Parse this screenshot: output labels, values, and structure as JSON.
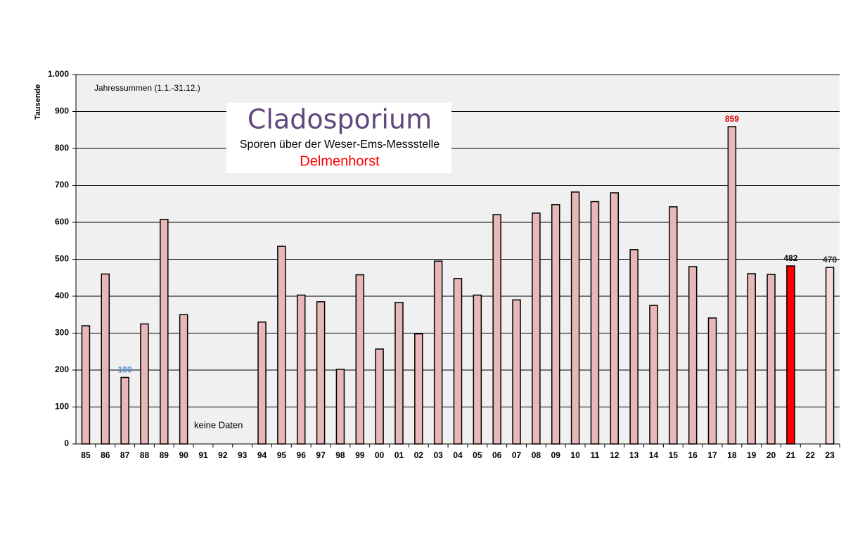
{
  "chart_data": {
    "type": "bar",
    "title": "Cladosporium",
    "subtitle": "Sporen über der Weser-Ems-Messstelle",
    "location": "Delmenhorst",
    "y_label": "Tausende",
    "annotations": [
      "Jahressummen  (1.1.-31.12.)",
      "keine  Daten"
    ],
    "categories": [
      "85",
      "86",
      "87",
      "88",
      "89",
      "90",
      "91",
      "92",
      "93",
      "94",
      "95",
      "96",
      "97",
      "98",
      "99",
      "00",
      "01",
      "02",
      "03",
      "04",
      "05",
      "06",
      "07",
      "08",
      "09",
      "10",
      "11",
      "12",
      "13",
      "14",
      "15",
      "16",
      "17",
      "18",
      "19",
      "20",
      "21",
      "22",
      "23"
    ],
    "values": [
      320,
      460,
      180,
      325,
      608,
      350,
      null,
      null,
      null,
      330,
      535,
      403,
      385,
      202,
      458,
      257,
      383,
      298,
      495,
      448,
      403,
      621,
      390,
      625,
      648,
      682,
      656,
      680,
      526,
      375,
      642,
      480,
      341,
      859,
      461,
      459,
      482,
      null,
      478
    ],
    "colors": [
      "#e6b8b7",
      "#e6b8b7",
      "#e6b8b7",
      "#e6b8b7",
      "#e6b8b7",
      "#e6b8b7",
      null,
      null,
      null,
      "#e6b8b7",
      "#e6b8b7",
      "#e6b8b7",
      "#e6b8b7",
      "#e6b8b7",
      "#e6b8b7",
      "#e6b8b7",
      "#e6b8b7",
      "#e6b8b7",
      "#e6b8b7",
      "#e6b8b7",
      "#e6b8b7",
      "#e6b8b7",
      "#e6b8b7",
      "#e6b8b7",
      "#e6b8b7",
      "#e6b8b7",
      "#e6b8b7",
      "#e6b8b7",
      "#e6b8b7",
      "#e6b8b7",
      "#e6b8b7",
      "#e6b8b7",
      "#e6b8b7",
      "#e6b8b7",
      "#e6b8b7",
      "#e6b8b7",
      "#ff0000",
      null,
      "#f2dcdb"
    ],
    "value_labels": [
      null,
      null,
      "180",
      null,
      null,
      null,
      null,
      null,
      null,
      null,
      null,
      null,
      null,
      null,
      null,
      null,
      null,
      null,
      null,
      null,
      null,
      null,
      null,
      null,
      null,
      null,
      null,
      null,
      null,
      null,
      null,
      null,
      null,
      "859",
      null,
      null,
      "482",
      null,
      "478"
    ],
    "label_colors": [
      null,
      null,
      "#558ed5",
      null,
      null,
      null,
      null,
      null,
      null,
      null,
      null,
      null,
      null,
      null,
      null,
      null,
      null,
      null,
      null,
      null,
      null,
      null,
      null,
      null,
      null,
      null,
      null,
      null,
      null,
      null,
      null,
      null,
      null,
      "#e00000",
      null,
      null,
      "#000000",
      null,
      "#333333"
    ],
    "ylim": [
      0,
      1000
    ],
    "yticks": [
      0,
      100,
      200,
      300,
      400,
      500,
      600,
      700,
      800,
      900,
      {
        "value": 1000,
        "label": "1.000"
      }
    ],
    "grid": true
  }
}
